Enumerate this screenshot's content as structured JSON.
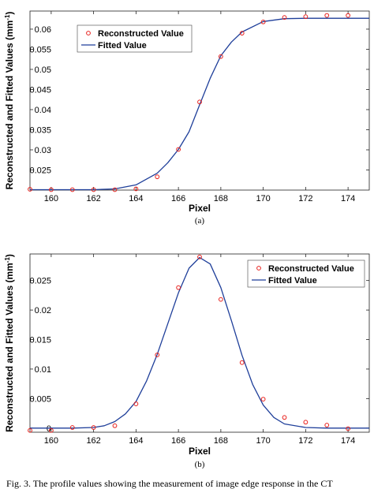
{
  "chart_data": [
    {
      "type": "scatter",
      "panel_label": "(a)",
      "xlabel": "Pixel",
      "ylabel": "Reconstructed and Fitted Values (mm",
      "ylabel_sup": "-1",
      "ylabel_close": ")",
      "xlim": [
        159,
        175
      ],
      "ylim": [
        0.02,
        0.0645
      ],
      "xticks": [
        160,
        162,
        164,
        166,
        168,
        170,
        172,
        174
      ],
      "yticks": [
        0.025,
        0.03,
        0.035,
        0.04,
        0.045,
        0.05,
        0.055,
        0.06
      ],
      "ytick_labels": [
        "0.025",
        "0.03",
        "0.035",
        "0.04",
        "0.045",
        "0.05",
        "0.055",
        "0.06"
      ],
      "legend_position": "top-left",
      "series": [
        {
          "name": "Reconstructed Value",
          "style": "markers",
          "color": "#e8201c",
          "x": [
            159,
            160,
            161,
            162,
            163,
            164,
            165,
            166,
            167,
            168,
            169,
            170,
            171,
            172,
            173,
            174
          ],
          "y": [
            0.0202,
            0.0201,
            0.0201,
            0.0201,
            0.0201,
            0.0203,
            0.0233,
            0.0301,
            0.0419,
            0.0532,
            0.059,
            0.0618,
            0.0629,
            0.0631,
            0.0634,
            0.0634
          ]
        },
        {
          "name": "Fitted Value",
          "style": "line",
          "color": "#1f3f9a",
          "x": [
            159,
            160,
            161,
            162,
            163,
            164,
            165,
            165.5,
            166,
            166.5,
            167,
            167.5,
            168,
            168.5,
            169,
            170,
            171,
            172,
            173,
            174,
            175
          ],
          "y": [
            0.0201,
            0.0201,
            0.0201,
            0.0201,
            0.0203,
            0.0213,
            0.0242,
            0.0268,
            0.0301,
            0.0345,
            0.0412,
            0.0478,
            0.0534,
            0.0568,
            0.0593,
            0.0619,
            0.0626,
            0.0627,
            0.0627,
            0.0627,
            0.0627
          ]
        }
      ]
    },
    {
      "type": "scatter",
      "panel_label": "(b)",
      "xlabel": "Pixel",
      "ylabel": "Reconstructed and Fitted Values (mm",
      "ylabel_sup": "-1",
      "ylabel_close": ")",
      "xlim": [
        159,
        175
      ],
      "ylim": [
        -0.0007,
        0.0295
      ],
      "xticks": [
        160,
        162,
        164,
        166,
        168,
        170,
        172,
        174
      ],
      "yticks": [
        0,
        0.005,
        0.01,
        0.015,
        0.02,
        0.025
      ],
      "ytick_labels": [
        "0",
        "0.005",
        "0.01",
        "0.015",
        "0.02",
        "0.025"
      ],
      "legend_position": "top-right",
      "series": [
        {
          "name": "Reconstructed Value",
          "style": "markers",
          "color": "#e8201c",
          "x": [
            159,
            160,
            161,
            162,
            163,
            164,
            165,
            166,
            167,
            168,
            169,
            170,
            171,
            172,
            173,
            174
          ],
          "y": [
            -0.0004,
            -0.0004,
            0.0001,
            0.0001,
            0.0004,
            0.0041,
            0.0124,
            0.0238,
            0.029,
            0.0218,
            0.0111,
            0.0049,
            0.0018,
            0.001,
            0.0005,
            -0.0001
          ]
        },
        {
          "name": "Fitted Value",
          "style": "line",
          "color": "#1f3f9a",
          "x": [
            159,
            160,
            161,
            162,
            162.5,
            163,
            163.5,
            164,
            164.5,
            165,
            165.5,
            166,
            166.5,
            167,
            167.5,
            168,
            168.5,
            169,
            169.5,
            170,
            170.5,
            171,
            172,
            173,
            174,
            175
          ],
          "y": [
            0,
            0,
            0,
            0.0001,
            0.0004,
            0.0011,
            0.0024,
            0.0045,
            0.008,
            0.0125,
            0.0177,
            0.0229,
            0.0271,
            0.0289,
            0.0278,
            0.0238,
            0.0182,
            0.0123,
            0.0074,
            0.0039,
            0.0018,
            0.0007,
            0.0001,
            0,
            0,
            0
          ]
        }
      ]
    }
  ],
  "caption": "Fig. 3.   The profile values showing the measurement of image edge response in the CT"
}
